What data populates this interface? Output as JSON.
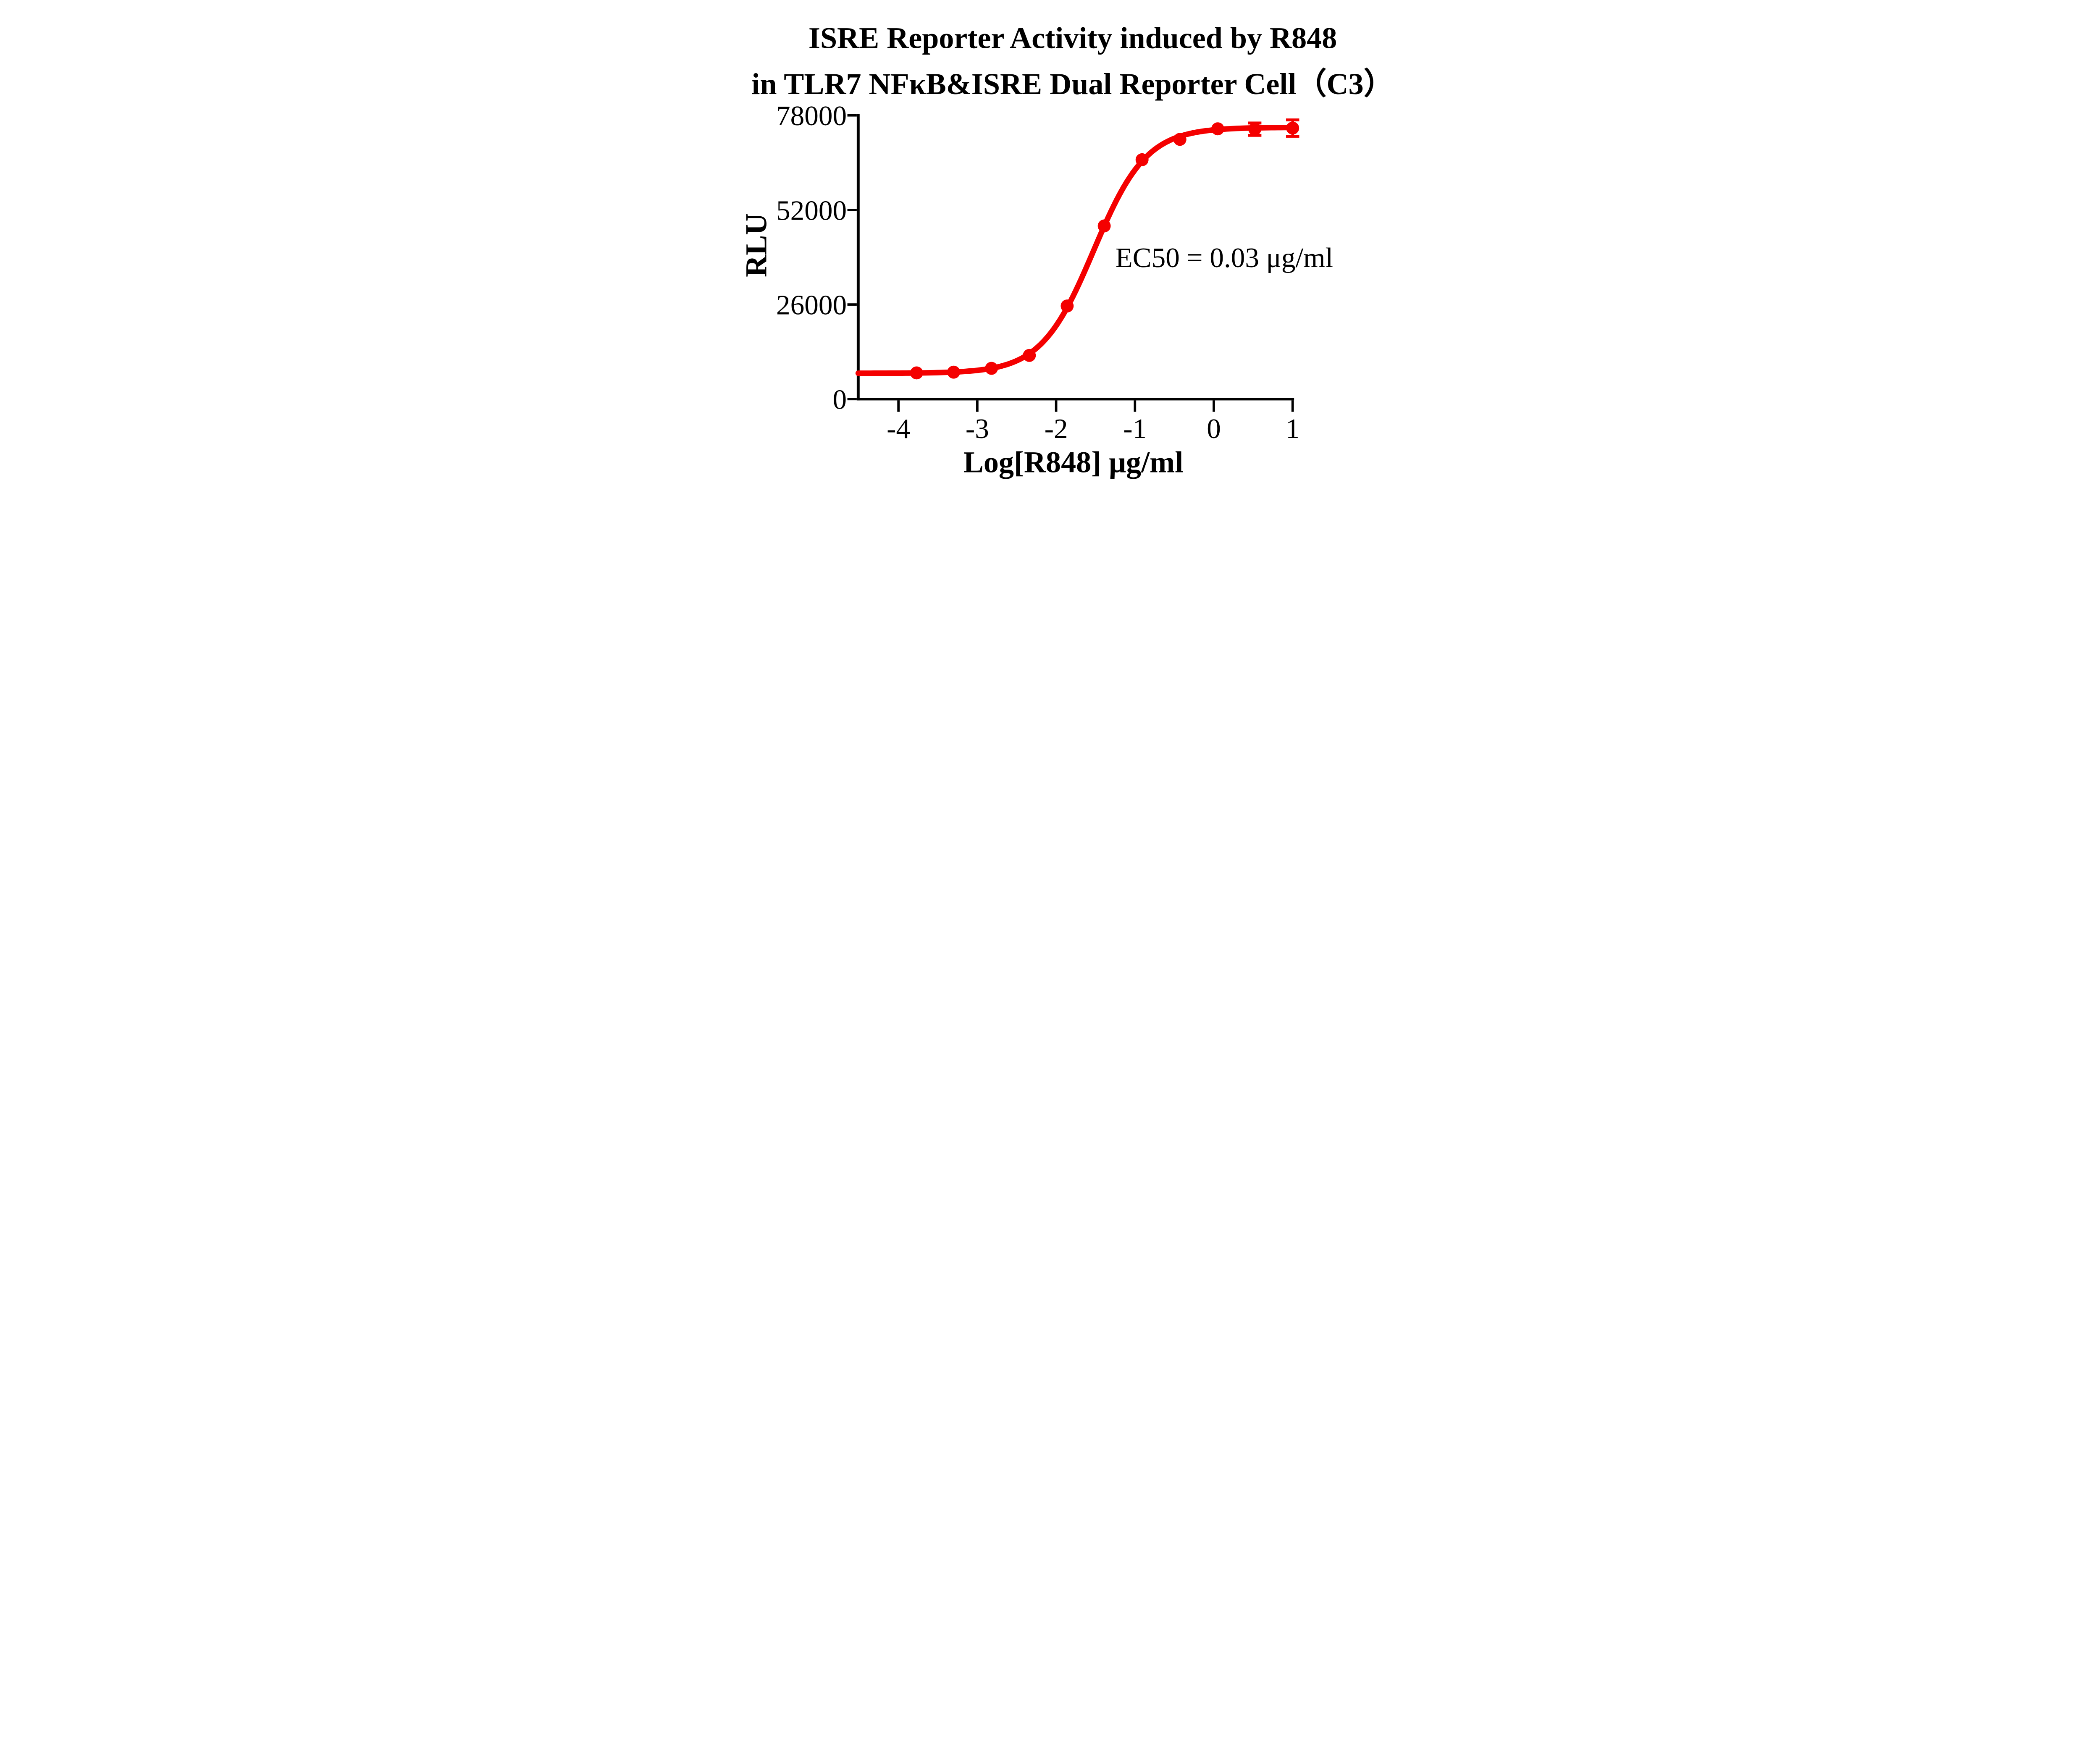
{
  "title": {
    "line1": "ISRE Reporter Activity induced by R848",
    "line2": "in TLR7 NFκB&ISRE Dual Reporter Cell（C3）"
  },
  "chart_data": {
    "type": "line",
    "title": "ISRE Reporter Activity induced by R848 in TLR7 NFκB&ISRE Dual Reporter Cell（C3）",
    "xlabel": "Log[R848] μg/ml",
    "ylabel": "RLU",
    "annotation": "EC50 = 0.03 μg/ml",
    "ec50_ug_ml": 0.03,
    "x_ticks": [
      -4,
      -3,
      -2,
      -1,
      0,
      1
    ],
    "y_ticks": [
      0,
      26000,
      52000,
      78000
    ],
    "xlim": [
      -4.51,
      1.0
    ],
    "ylim": [
      0,
      78000
    ],
    "grid": false,
    "legend": "none",
    "background": "#ffffff",
    "axis_color": "#000000",
    "series": [
      {
        "name": "R848",
        "color": "#f40000",
        "marker": "circle",
        "x": [
          -3.77,
          -3.3,
          -2.82,
          -2.34,
          -1.86,
          -1.39,
          -0.91,
          -0.43,
          0.05,
          0.52,
          1.0
        ],
        "y": [
          7200,
          7400,
          8450,
          12000,
          25600,
          47600,
          65800,
          71400,
          74300,
          74200,
          74500
        ],
        "y_err": [
          0,
          0,
          0,
          0,
          0,
          0,
          0,
          0,
          0,
          1700,
          2250
        ]
      }
    ],
    "fit": {
      "model": "4PL",
      "bottom": 7100,
      "top": 74700,
      "log_ec50": -1.523,
      "hill_slope": 1.3
    }
  }
}
